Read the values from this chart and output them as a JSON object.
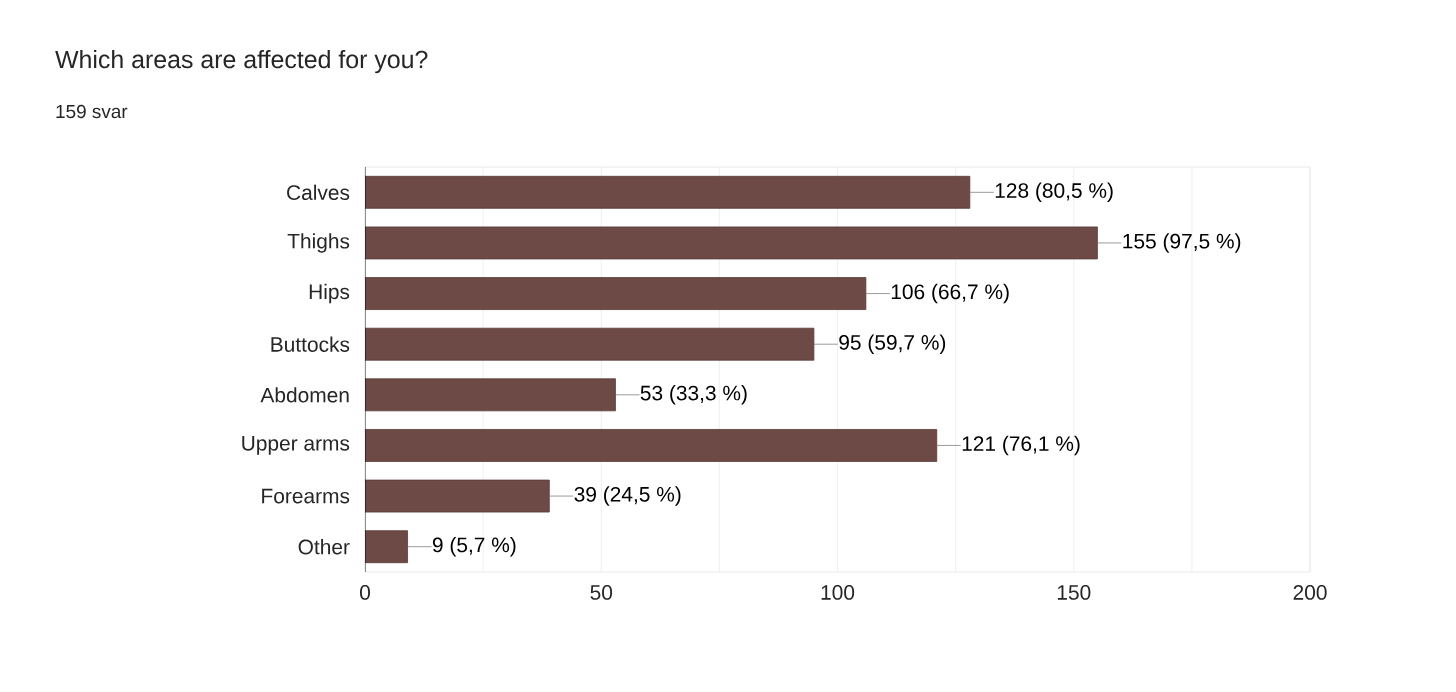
{
  "chart_data": {
    "type": "bar",
    "orientation": "horizontal",
    "title": "Which areas are affected for you?",
    "subtitle": "159 svar",
    "categories": [
      "Calves",
      "Thighs",
      "Hips",
      "Buttocks",
      "Abdomen",
      "Upper arms",
      "Forearms",
      "Other"
    ],
    "values": [
      128,
      155,
      106,
      95,
      53,
      121,
      39,
      9
    ],
    "value_labels": [
      "128 (80,5 %)",
      "155 (97,5 %)",
      "106 (66,7 %)",
      "95 (59,7 %)",
      "53 (33,3 %)",
      "121 (76,1 %)",
      "39 (24,5 %)",
      "9 (5,7 %)"
    ],
    "color": "#6d4a45",
    "xlim": [
      0,
      200
    ],
    "xticks": [
      0,
      {
        "value": 25,
        "label": null
      },
      50,
      {
        "value": 75,
        "label": null
      },
      100,
      {
        "value": 125,
        "label": null
      },
      150,
      {
        "value": 175,
        "label": null
      },
      200
    ],
    "grid": "x"
  }
}
